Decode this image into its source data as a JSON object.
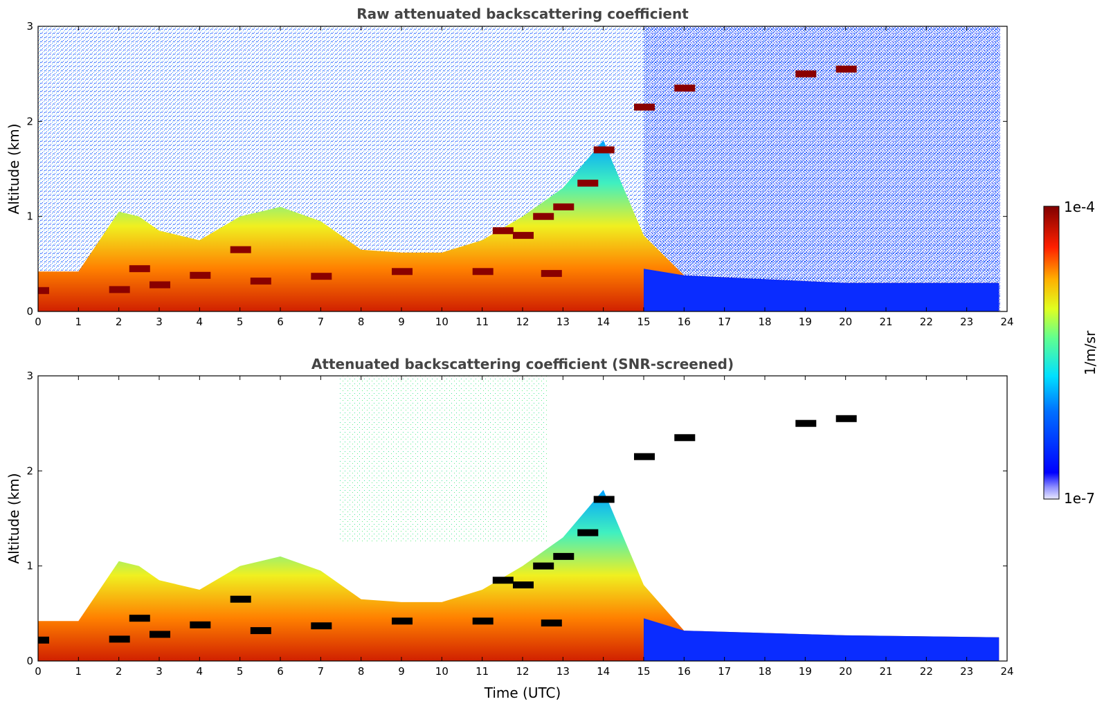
{
  "chart_data": [
    {
      "type": "heatmap",
      "title": "Raw attenuated backscattering coefficient",
      "xlabel": "",
      "ylabel": "Altitude (km)",
      "xlim": [
        0,
        24
      ],
      "ylim": [
        0,
        3
      ],
      "xticks": [
        "0",
        "1",
        "2",
        "3",
        "4",
        "5",
        "6",
        "7",
        "8",
        "9",
        "10",
        "11",
        "12",
        "13",
        "14",
        "15",
        "16",
        "17",
        "18",
        "19",
        "20",
        "21",
        "22",
        "23",
        "24"
      ],
      "yticks": [
        "0",
        "1",
        "2",
        "3"
      ],
      "grid": false,
      "layer_top_km": [
        {
          "t": 0,
          "h": 0.42
        },
        {
          "t": 1,
          "h": 0.42
        },
        {
          "t": 2,
          "h": 1.05
        },
        {
          "t": 2.5,
          "h": 1.0
        },
        {
          "t": 3,
          "h": 0.85
        },
        {
          "t": 4,
          "h": 0.75
        },
        {
          "t": 5,
          "h": 1.0
        },
        {
          "t": 6,
          "h": 1.1
        },
        {
          "t": 7,
          "h": 0.95
        },
        {
          "t": 8,
          "h": 0.65
        },
        {
          "t": 9,
          "h": 0.62
        },
        {
          "t": 10,
          "h": 0.62
        },
        {
          "t": 11,
          "h": 0.75
        },
        {
          "t": 12,
          "h": 1.0
        },
        {
          "t": 13,
          "h": 1.3
        },
        {
          "t": 14,
          "h": 1.8
        },
        {
          "t": 15,
          "h": 0.8
        },
        {
          "t": 16,
          "h": 0.38
        },
        {
          "t": 20,
          "h": 0.3
        },
        {
          "t": 23.8,
          "h": 0.3
        }
      ],
      "cloud_layer_km": [
        {
          "t": 0,
          "h": 0.22
        },
        {
          "t": 2,
          "h": 0.23
        },
        {
          "t": 2.5,
          "h": 0.45
        },
        {
          "t": 3,
          "h": 0.28
        },
        {
          "t": 4,
          "h": 0.38
        },
        {
          "t": 5,
          "h": 0.65
        },
        {
          "t": 5.5,
          "h": 0.32
        },
        {
          "t": 7,
          "h": 0.37
        },
        {
          "t": 9,
          "h": 0.42
        },
        {
          "t": 11,
          "h": 0.42
        },
        {
          "t": 12.7,
          "h": 0.4
        },
        {
          "t": 11.5,
          "h": 0.85
        },
        {
          "t": 12,
          "h": 0.8
        },
        {
          "t": 12.5,
          "h": 1.0
        },
        {
          "t": 13,
          "h": 1.1
        },
        {
          "t": 13.6,
          "h": 1.35
        },
        {
          "t": 14,
          "h": 1.7
        },
        {
          "t": 15,
          "h": 2.15
        },
        {
          "t": 16,
          "h": 2.35
        },
        {
          "t": 19,
          "h": 2.5
        },
        {
          "t": 20,
          "h": 2.55
        }
      ]
    },
    {
      "type": "heatmap",
      "title": "Attenuated backscattering coefficient (SNR-screened)",
      "xlabel": "Time (UTC)",
      "ylabel": "Altitude (km)",
      "xlim": [
        0,
        24
      ],
      "ylim": [
        0,
        3
      ],
      "xticks": [
        "0",
        "1",
        "2",
        "3",
        "4",
        "5",
        "6",
        "7",
        "8",
        "9",
        "10",
        "11",
        "12",
        "13",
        "14",
        "15",
        "16",
        "17",
        "18",
        "19",
        "20",
        "21",
        "22",
        "23",
        "24"
      ],
      "yticks": [
        "0",
        "1",
        "2",
        "3"
      ],
      "grid": false,
      "layer_top_km": [
        {
          "t": 0,
          "h": 0.42
        },
        {
          "t": 1,
          "h": 0.42
        },
        {
          "t": 2,
          "h": 1.05
        },
        {
          "t": 2.5,
          "h": 1.0
        },
        {
          "t": 3,
          "h": 0.85
        },
        {
          "t": 4,
          "h": 0.75
        },
        {
          "t": 5,
          "h": 1.0
        },
        {
          "t": 6,
          "h": 1.1
        },
        {
          "t": 7,
          "h": 0.95
        },
        {
          "t": 8,
          "h": 0.65
        },
        {
          "t": 9,
          "h": 0.62
        },
        {
          "t": 10,
          "h": 0.62
        },
        {
          "t": 11,
          "h": 0.75
        },
        {
          "t": 12,
          "h": 1.0
        },
        {
          "t": 13,
          "h": 1.3
        },
        {
          "t": 14,
          "h": 1.8
        },
        {
          "t": 15,
          "h": 0.8
        },
        {
          "t": 16,
          "h": 0.32
        },
        {
          "t": 20,
          "h": 0.27
        },
        {
          "t": 23.8,
          "h": 0.25
        }
      ],
      "cloud_layer_km": [
        {
          "t": 0,
          "h": 0.22
        },
        {
          "t": 2,
          "h": 0.23
        },
        {
          "t": 2.5,
          "h": 0.45
        },
        {
          "t": 3,
          "h": 0.28
        },
        {
          "t": 4,
          "h": 0.38
        },
        {
          "t": 5,
          "h": 0.65
        },
        {
          "t": 5.5,
          "h": 0.32
        },
        {
          "t": 7,
          "h": 0.37
        },
        {
          "t": 9,
          "h": 0.42
        },
        {
          "t": 11,
          "h": 0.42
        },
        {
          "t": 12.7,
          "h": 0.4
        },
        {
          "t": 11.5,
          "h": 0.85
        },
        {
          "t": 12,
          "h": 0.8
        },
        {
          "t": 12.5,
          "h": 1.0
        },
        {
          "t": 13,
          "h": 1.1
        },
        {
          "t": 13.6,
          "h": 1.35
        },
        {
          "t": 14,
          "h": 1.7
        },
        {
          "t": 15,
          "h": 2.15
        },
        {
          "t": 16,
          "h": 2.35
        },
        {
          "t": 19,
          "h": 2.5
        },
        {
          "t": 20,
          "h": 2.55
        }
      ]
    }
  ],
  "colorbar": {
    "label": "1/m/sr",
    "max_label": "1e-4",
    "min_label": "1e-7",
    "colors": [
      "#000080",
      "#0000ff",
      "#0080ff",
      "#00ffff",
      "#80ff80",
      "#ffff00",
      "#ff8000",
      "#ff0000",
      "#800000"
    ]
  }
}
